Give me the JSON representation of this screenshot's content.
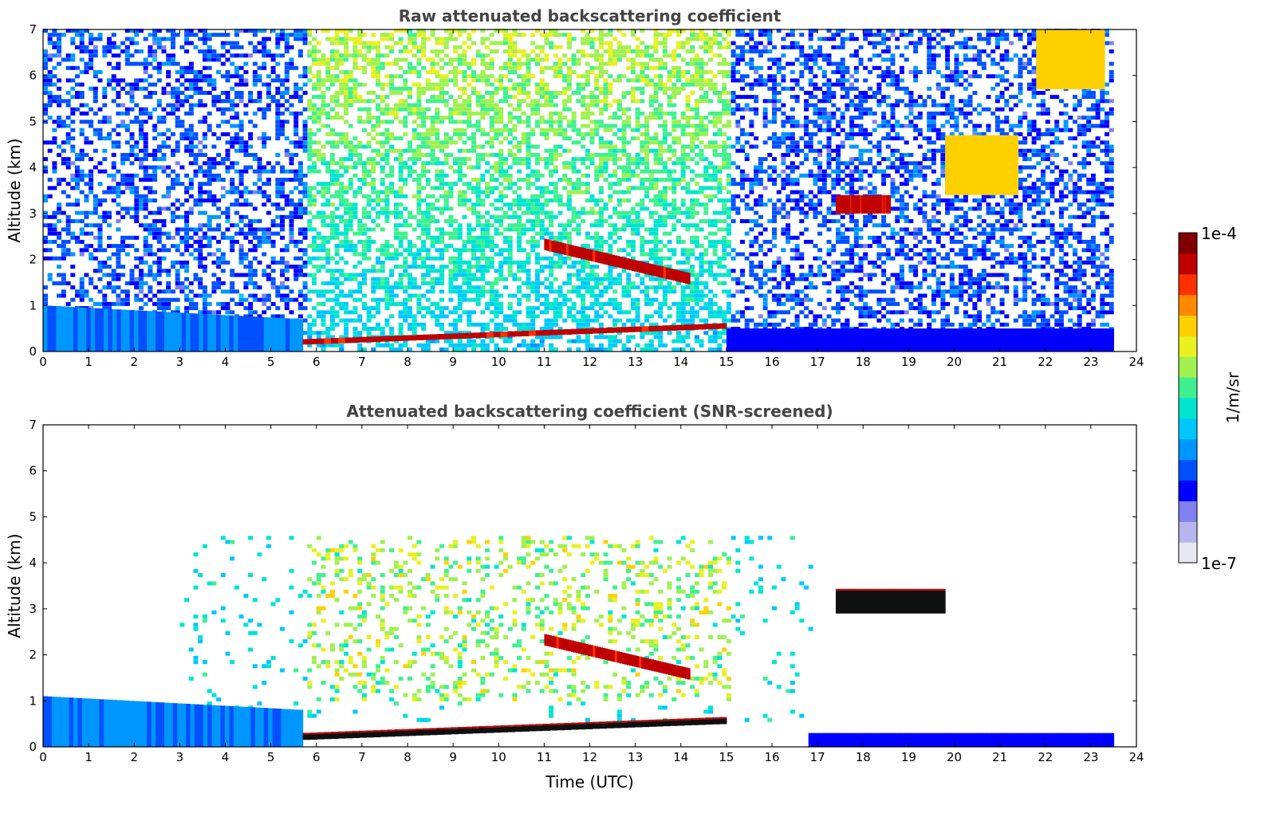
{
  "chart_data": [
    {
      "type": "heatmap",
      "title": "Raw attenuated backscattering coefficient",
      "xlabel": "",
      "ylabel": "Altitude (km)",
      "xlim": [
        0,
        24
      ],
      "ylim": [
        0,
        7
      ],
      "x_ticks": [
        "0",
        "1",
        "2",
        "3",
        "4",
        "5",
        "6",
        "7",
        "8",
        "9",
        "10",
        "11",
        "12",
        "13",
        "14",
        "15",
        "16",
        "17",
        "18",
        "19",
        "20",
        "21",
        "22",
        "23",
        "24"
      ],
      "y_ticks": [
        "0",
        "1",
        "2",
        "3",
        "4",
        "5",
        "6",
        "7"
      ],
      "data_end_time": 23.5,
      "features": [
        {
          "name": "boundary-layer-night",
          "t": [
            0,
            5.7
          ],
          "alt": [
            0,
            1.0
          ],
          "level": "low-medium"
        },
        {
          "name": "cloud-base-layer",
          "t": [
            5.7,
            15
          ],
          "alt": [
            0.15,
            0.55
          ],
          "level": "high"
        },
        {
          "name": "boundary-layer-afternoon",
          "t": [
            15,
            23.5
          ],
          "alt": [
            0,
            0.5
          ],
          "level": "low"
        },
        {
          "name": "aerosol-layer-2km",
          "t": [
            11,
            14.2
          ],
          "alt": [
            1.5,
            2.4
          ],
          "level": "high"
        },
        {
          "name": "cloud-3km",
          "t": [
            17.4,
            18.6
          ],
          "alt": [
            3.0,
            3.4
          ],
          "level": "high"
        },
        {
          "name": "cirrus-4km",
          "t": [
            19.8,
            21.4
          ],
          "alt": [
            3.4,
            4.7
          ],
          "level": "medium-high"
        },
        {
          "name": "cirrus-6km",
          "t": [
            21.8,
            23.3
          ],
          "alt": [
            5.7,
            7.0
          ],
          "level": "medium-high"
        }
      ]
    },
    {
      "type": "heatmap",
      "title": "Attenuated backscattering coefficient (SNR-screened)",
      "xlabel": "Time (UTC)",
      "ylabel": "Altitude (km)",
      "xlim": [
        0,
        24
      ],
      "ylim": [
        0,
        7
      ],
      "x_ticks": [
        "0",
        "1",
        "2",
        "3",
        "4",
        "5",
        "6",
        "7",
        "8",
        "9",
        "10",
        "11",
        "12",
        "13",
        "14",
        "15",
        "16",
        "17",
        "18",
        "19",
        "20",
        "21",
        "22",
        "23",
        "24"
      ],
      "y_ticks": [
        "0",
        "1",
        "2",
        "3",
        "4",
        "5",
        "6",
        "7"
      ],
      "data_end_time": 23.5,
      "features": [
        {
          "name": "boundary-layer-night",
          "t": [
            0,
            5.7
          ],
          "alt": [
            0,
            1.1
          ],
          "level": "low-medium"
        },
        {
          "name": "cloud-base-layer",
          "t": [
            5.7,
            15
          ],
          "alt": [
            0.15,
            0.55
          ],
          "level": "saturated"
        },
        {
          "name": "boundary-layer-afternoon",
          "t": [
            16.8,
            23.5
          ],
          "alt": [
            0,
            0.3
          ],
          "level": "low"
        },
        {
          "name": "aerosol-layer-2km",
          "t": [
            11,
            14.2
          ],
          "alt": [
            1.5,
            2.4
          ],
          "level": "high"
        },
        {
          "name": "cloud-3km",
          "t": [
            17.4,
            19.8
          ],
          "alt": [
            2.9,
            3.4
          ],
          "level": "saturated"
        }
      ]
    }
  ],
  "colorbar": {
    "label": "1/m/sr",
    "max_label": "1e-4",
    "min_label": "1e-7",
    "colors": [
      "#e8e8f4",
      "#b6b6ec",
      "#8080f0",
      "#0000ff",
      "#0050ff",
      "#0096ff",
      "#00c8ff",
      "#00e4d0",
      "#40f090",
      "#a0f050",
      "#e8f020",
      "#ffd000",
      "#ff8800",
      "#ff3000",
      "#c00000",
      "#800000"
    ]
  }
}
